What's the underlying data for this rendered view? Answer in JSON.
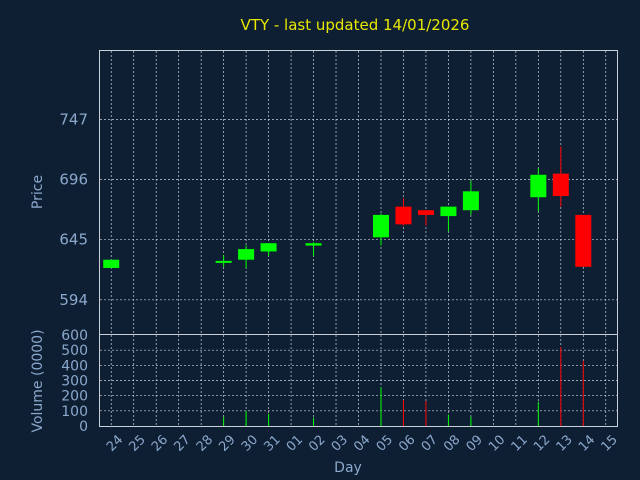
{
  "title": "VTY - last updated 14/01/2026",
  "colors": {
    "background": "#0f1f33",
    "up": "#00ff00",
    "down": "#ff0000",
    "title": "#e8e800",
    "axis_text": "#8aa8cc",
    "grid": "#c8d0d8"
  },
  "chart_data": [
    {
      "type": "candlestick",
      "ylabel": "Price",
      "ylim": [
        565,
        805
      ],
      "yticks": [
        594,
        645,
        696,
        747
      ],
      "grid": true,
      "x": [
        "24",
        "25",
        "26",
        "27",
        "28",
        "29",
        "30",
        "31",
        "01",
        "02",
        "03",
        "04",
        "05",
        "06",
        "07",
        "08",
        "09",
        "10",
        "11",
        "12",
        "13",
        "14",
        "15"
      ],
      "candles": [
        {
          "day": "24",
          "open": 621,
          "high": 628,
          "low": 621,
          "close": 628
        },
        {
          "day": "29",
          "open": 626,
          "high": 632,
          "low": 622,
          "close": 627
        },
        {
          "day": "30",
          "open": 628,
          "high": 640,
          "low": 621,
          "close": 637
        },
        {
          "day": "31",
          "open": 635,
          "high": 642,
          "low": 631,
          "close": 642
        },
        {
          "day": "02",
          "open": 640,
          "high": 643,
          "low": 631,
          "close": 642
        },
        {
          "day": "05",
          "open": 647,
          "high": 667,
          "low": 640,
          "close": 666
        },
        {
          "day": "06",
          "open": 673,
          "high": 680,
          "low": 657,
          "close": 658
        },
        {
          "day": "07",
          "open": 670,
          "high": 670,
          "low": 657,
          "close": 666
        },
        {
          "day": "08",
          "open": 665,
          "high": 673,
          "low": 652,
          "close": 673
        },
        {
          "day": "09",
          "open": 670,
          "high": 695,
          "low": 666,
          "close": 686
        },
        {
          "day": "12",
          "open": 681,
          "high": 706,
          "low": 669,
          "close": 700
        },
        {
          "day": "13",
          "open": 701,
          "high": 724,
          "low": 673,
          "close": 682
        },
        {
          "day": "14",
          "open": 666,
          "high": 666,
          "low": 622,
          "close": 622
        }
      ]
    },
    {
      "type": "bar",
      "ylabel": "Volume (0000)",
      "xlabel": "Day",
      "ylim": [
        0,
        600
      ],
      "yticks": [
        0,
        100,
        200,
        300,
        400,
        500,
        600
      ],
      "grid": true,
      "categories": [
        "24",
        "25",
        "26",
        "27",
        "28",
        "29",
        "30",
        "31",
        "01",
        "02",
        "03",
        "04",
        "05",
        "06",
        "07",
        "08",
        "09",
        "10",
        "11",
        "12",
        "13",
        "14",
        "15"
      ],
      "bars": [
        {
          "day": "29",
          "value": 60,
          "color": "up"
        },
        {
          "day": "30",
          "value": 100,
          "color": "up"
        },
        {
          "day": "31",
          "value": 80,
          "color": "up"
        },
        {
          "day": "02",
          "value": 55,
          "color": "up"
        },
        {
          "day": "05",
          "value": 255,
          "color": "up"
        },
        {
          "day": "06",
          "value": 170,
          "color": "down"
        },
        {
          "day": "07",
          "value": 165,
          "color": "down"
        },
        {
          "day": "08",
          "value": 75,
          "color": "up"
        },
        {
          "day": "09",
          "value": 60,
          "color": "up"
        },
        {
          "day": "12",
          "value": 160,
          "color": "up"
        },
        {
          "day": "13",
          "value": 520,
          "color": "down"
        },
        {
          "day": "14",
          "value": 430,
          "color": "down"
        }
      ]
    }
  ]
}
